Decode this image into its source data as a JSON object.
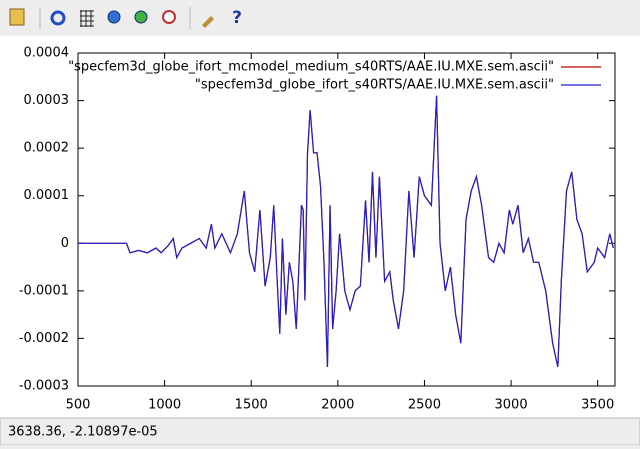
{
  "chart_data": {
    "type": "line",
    "legend": "top-right",
    "xlim": [
      500,
      3600
    ],
    "xticks": [
      500,
      1000,
      1500,
      2000,
      2500,
      3000,
      3500
    ],
    "ylim": [
      -0.0003,
      0.0004
    ],
    "yticks": [
      -0.0003,
      -0.0002,
      -0.0001,
      0,
      0.0001,
      0.0002,
      0.0003,
      0.0004
    ],
    "x": [
      500,
      780,
      800,
      850,
      900,
      950,
      980,
      1020,
      1050,
      1070,
      1100,
      1150,
      1200,
      1240,
      1270,
      1290,
      1330,
      1380,
      1420,
      1460,
      1490,
      1520,
      1550,
      1580,
      1610,
      1630,
      1650,
      1665,
      1680,
      1700,
      1720,
      1740,
      1760,
      1790,
      1800,
      1810,
      1825,
      1840,
      1860,
      1880,
      1900,
      1920,
      1940,
      1955,
      1970,
      1990,
      2010,
      2040,
      2070,
      2100,
      2130,
      2160,
      2180,
      2200,
      2220,
      2240,
      2270,
      2300,
      2320,
      2350,
      2380,
      2410,
      2440,
      2470,
      2500,
      2540,
      2570,
      2590,
      2620,
      2650,
      2680,
      2710,
      2740,
      2770,
      2800,
      2830,
      2870,
      2900,
      2930,
      2960,
      2990,
      3010,
      3040,
      3070,
      3100,
      3130,
      3160,
      3200,
      3240,
      3270,
      3290,
      3320,
      3350,
      3380,
      3410,
      3440,
      3480,
      3500,
      3540,
      3570,
      3590
    ],
    "series": [
      {
        "name": "\"specfem3d_globe_ifort_mcmodel_medium_s40RTS/AAE.IU.MXE.sem.ascii\"",
        "color": "#c00000",
        "values": [
          0,
          0,
          -2e-05,
          -1.5e-05,
          -2e-05,
          -1e-05,
          -2e-05,
          -5e-06,
          1e-05,
          -3e-05,
          -1e-05,
          0,
          1e-05,
          -1e-05,
          4e-05,
          -1e-05,
          2e-05,
          -2e-05,
          2e-05,
          0.00011,
          -2e-05,
          -6e-05,
          7e-05,
          -9e-05,
          -3e-05,
          8e-05,
          -8e-05,
          -0.00019,
          1e-05,
          -0.00015,
          -4e-05,
          -8e-05,
          -0.00018,
          8e-05,
          7e-05,
          -0.00012,
          0.00019,
          0.00028,
          0.00019,
          0.00019,
          0.00012,
          -4e-05,
          -0.00026,
          8e-05,
          -0.00018,
          -0.0001,
          2e-05,
          -0.0001,
          -0.00014,
          -0.0001,
          -9e-05,
          9e-05,
          -4e-05,
          0.00015,
          -3e-05,
          0.00014,
          -8e-05,
          -6e-05,
          -0.00012,
          -0.00018,
          -0.0001,
          0.00011,
          -3e-05,
          0.00014,
          0.0001,
          8e-05,
          0.00031,
          0,
          -0.0001,
          -5e-05,
          -0.00015,
          -0.00021,
          5e-05,
          0.00011,
          0.00014,
          8e-05,
          -3e-05,
          -4e-05,
          0,
          -2e-05,
          7e-05,
          4e-05,
          8e-05,
          -2e-05,
          1e-05,
          -4e-05,
          -4e-05,
          -0.0001,
          -0.00021,
          -0.00026,
          -8e-05,
          0.00011,
          0.00015,
          5e-05,
          2e-05,
          -6e-05,
          -4e-05,
          -1e-05,
          -3e-05,
          2e-05,
          -1e-05
        ]
      },
      {
        "name": "\"specfem3d_globe_ifort_s40RTS/AAE.IU.MXE.sem.ascii\"",
        "color": "#2020d0",
        "values": [
          0,
          0,
          -2e-05,
          -1.5e-05,
          -2e-05,
          -1e-05,
          -2e-05,
          -5e-06,
          1e-05,
          -3e-05,
          -1e-05,
          0,
          1e-05,
          -1e-05,
          4e-05,
          -1e-05,
          2e-05,
          -2e-05,
          2e-05,
          0.00011,
          -2e-05,
          -6e-05,
          7e-05,
          -9e-05,
          -3e-05,
          8e-05,
          -8e-05,
          -0.00019,
          1e-05,
          -0.00015,
          -4e-05,
          -8e-05,
          -0.00018,
          8e-05,
          7e-05,
          -0.00012,
          0.00019,
          0.00028,
          0.00019,
          0.00019,
          0.00012,
          -4e-05,
          -0.00026,
          8e-05,
          -0.00018,
          -0.0001,
          2e-05,
          -0.0001,
          -0.00014,
          -0.0001,
          -9e-05,
          9e-05,
          -4e-05,
          0.00015,
          -3e-05,
          0.00014,
          -8e-05,
          -6e-05,
          -0.00012,
          -0.00018,
          -0.0001,
          0.00011,
          -3e-05,
          0.00014,
          0.0001,
          8e-05,
          0.00031,
          0,
          -0.0001,
          -5e-05,
          -0.00015,
          -0.00021,
          5e-05,
          0.00011,
          0.00014,
          8e-05,
          -3e-05,
          -4e-05,
          0,
          -2e-05,
          7e-05,
          4e-05,
          8e-05,
          -2e-05,
          1e-05,
          -4e-05,
          -4e-05,
          -0.0001,
          -0.00021,
          -0.00026,
          -8e-05,
          0.00011,
          0.00015,
          5e-05,
          2e-05,
          -6e-05,
          -4e-05,
          -1e-05,
          -3e-05,
          2e-05,
          -1e-05
        ]
      }
    ],
    "status": "3638.36, -2.10897e-05"
  }
}
